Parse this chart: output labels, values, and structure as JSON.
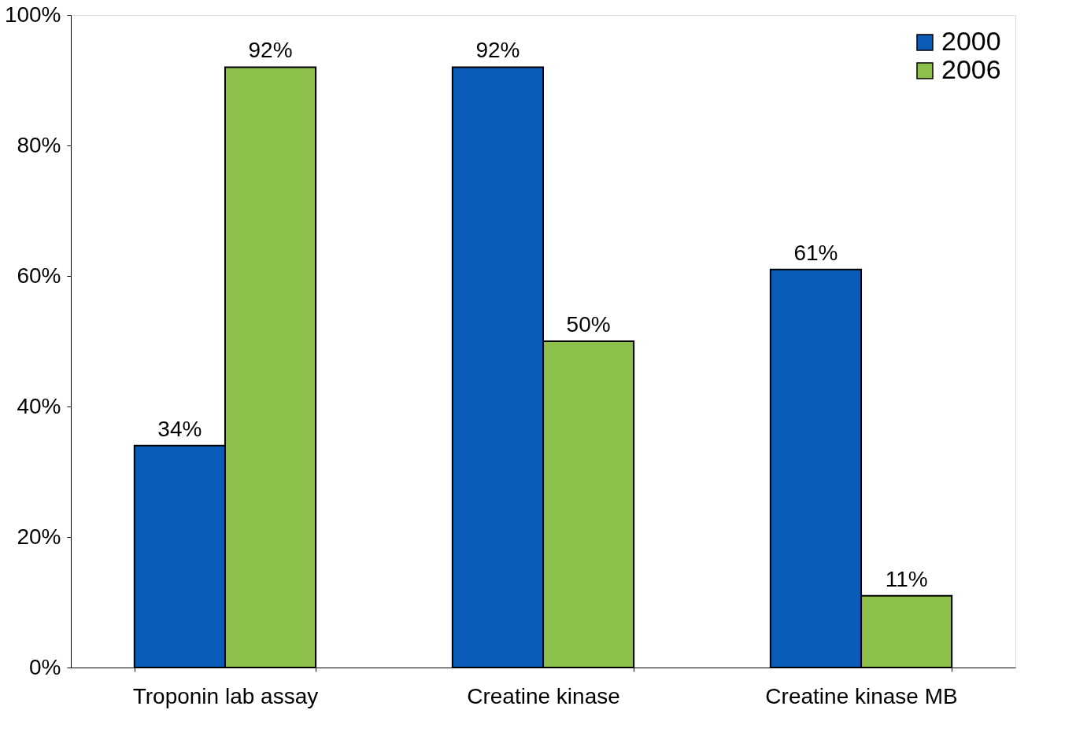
{
  "chart_data": {
    "type": "bar",
    "categories": [
      "Troponin lab assay",
      "Creatine kinase",
      "Creatine kinase MB"
    ],
    "series": [
      {
        "name": "2000",
        "color": "#0a5cb8",
        "values": [
          34,
          92,
          61
        ],
        "value_labels": [
          "34%",
          "92%",
          "61%"
        ]
      },
      {
        "name": "2006",
        "color": "#8cc04a",
        "values": [
          92,
          50,
          11
        ],
        "value_labels": [
          "92%",
          "50%",
          "11%"
        ]
      }
    ],
    "ylim": [
      0,
      100
    ],
    "yticks": [
      {
        "value": 0,
        "label": "0%"
      },
      {
        "value": 20,
        "label": "20%"
      },
      {
        "value": 40,
        "label": "40%"
      },
      {
        "value": 60,
        "label": "60%"
      },
      {
        "value": 80,
        "label": "80%"
      },
      {
        "value": 100,
        "label": "100%"
      }
    ],
    "legend": "top right",
    "grid": false
  }
}
